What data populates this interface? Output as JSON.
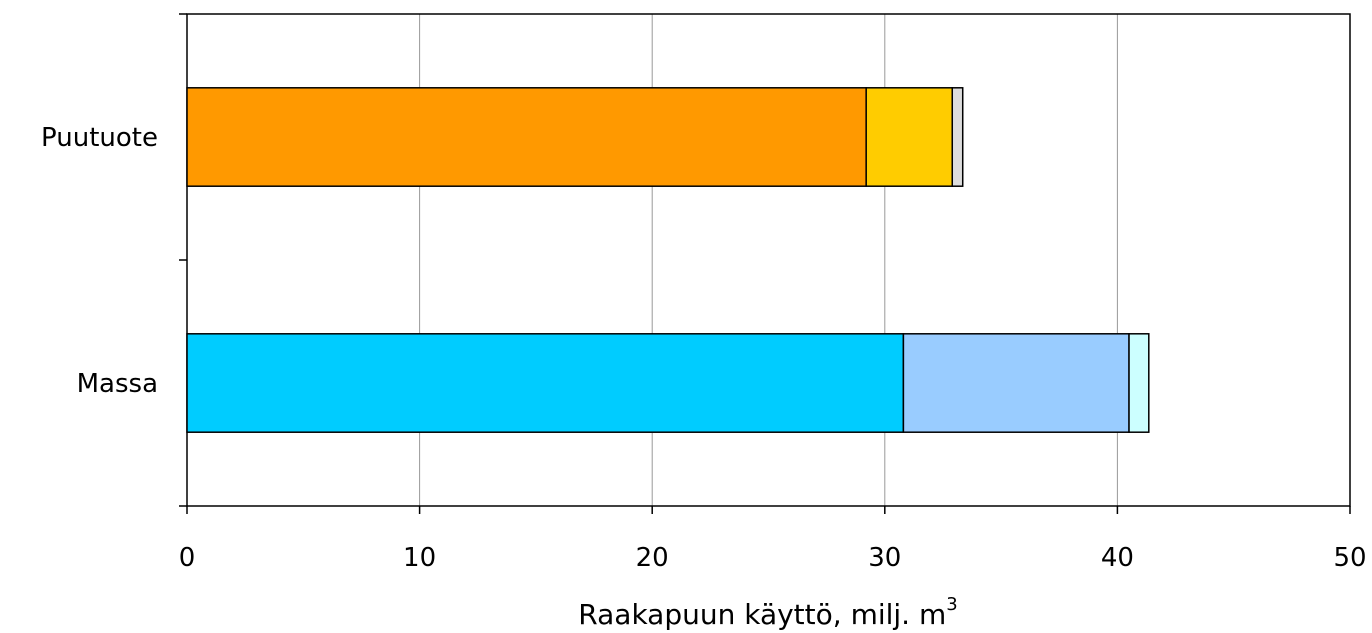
{
  "chart_data": {
    "type": "bar",
    "orientation": "horizontal",
    "stacked": true,
    "categories": [
      "Puutuote",
      "Massa"
    ],
    "segments": {
      "Puutuote": [
        {
          "value": 29.2,
          "color": "#FF9900"
        },
        {
          "value": 3.7,
          "color": "#FFCC00"
        },
        {
          "value": 0.45,
          "color": "#DDDDDD"
        }
      ],
      "Massa": [
        {
          "value": 30.8,
          "color": "#00CCFF"
        },
        {
          "value": 9.7,
          "color": "#99CCFF"
        },
        {
          "value": 0.85,
          "color": "#CCFFFF"
        }
      ]
    },
    "xlim": [
      0,
      50
    ],
    "xticks": [
      "0",
      "10",
      "20",
      "30",
      "40",
      "50"
    ],
    "xlabel": "Raakapuun käyttö, milj. m",
    "xlabel_superscript": "3",
    "grid": "vertical",
    "legend": "none"
  }
}
